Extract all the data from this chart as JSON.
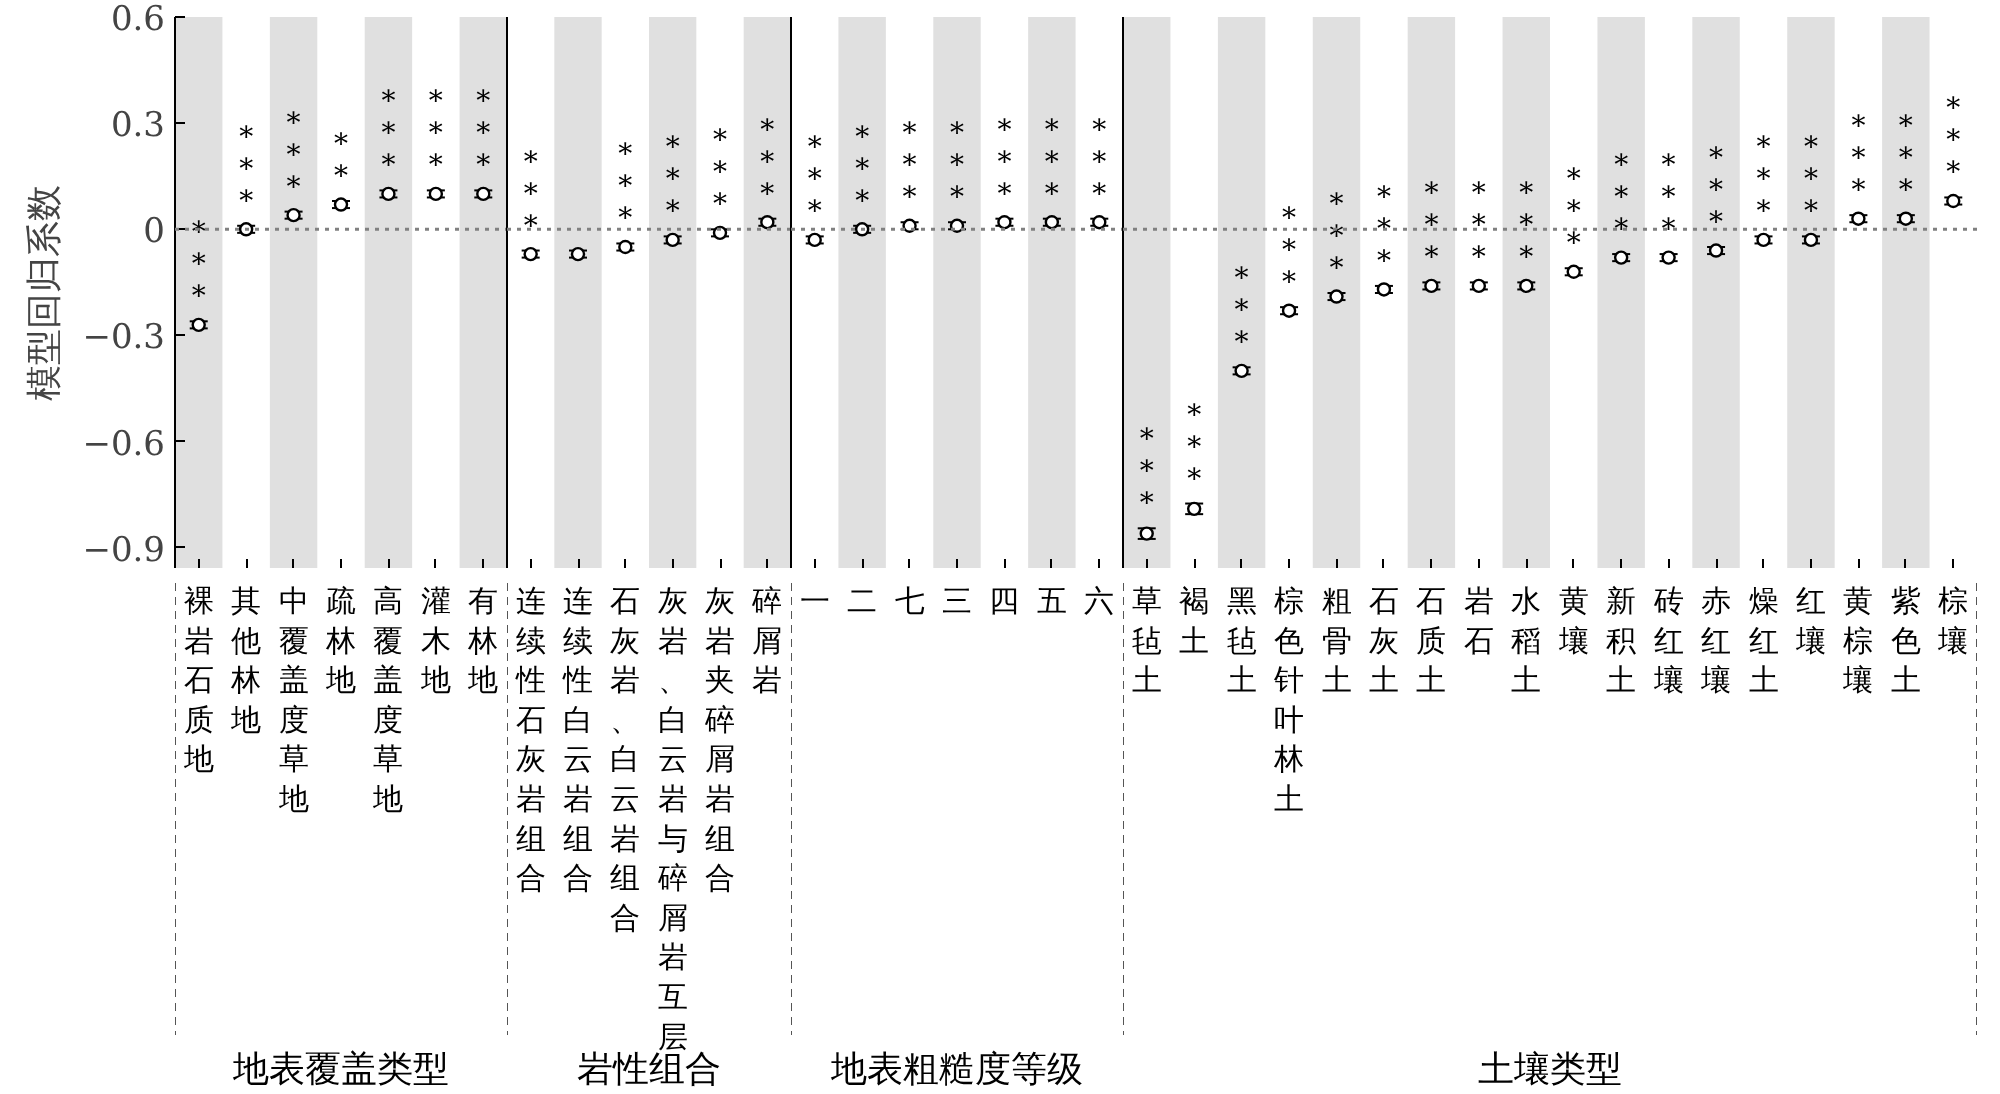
{
  "chart_data": [
    {
      "type": "scatter",
      "xlabel": "地表覆盖类型",
      "ylabel": "模型回归系数",
      "categories": [
        "裸岩石质地",
        "其他林地",
        "中覆盖度草地",
        "疏林地",
        "高覆盖度草地",
        "灌木地",
        "有林地"
      ],
      "series": [
        {
          "color": "#000000",
          "values": [
            -0.27,
            0.0,
            0.04,
            0.07,
            0.1,
            0.1,
            0.1
          ],
          "errors": [
            0.01,
            0.01,
            0.01,
            0.01,
            0.01,
            0.01,
            0.01
          ],
          "value_labels": [
            "***",
            "***",
            "***",
            "**",
            "***",
            "***",
            "***"
          ]
        }
      ],
      "marker": "circle",
      "grid": false,
      "ylim": [
        -0.96,
        0.6
      ],
      "yticks": [
        {
          "value": -0.9,
          "label": "−0.9"
        },
        {
          "value": -0.6,
          "label": "−0.6"
        },
        {
          "value": -0.3,
          "label": "−0.3"
        },
        0,
        0.3,
        0.6
      ],
      "ref_lines": [
        {
          "axis": "y",
          "value": 0,
          "color": "#808080",
          "line_style": "dotted"
        }
      ],
      "bands": [
        {
          "axis": "x",
          "from": "裸岩石质地",
          "to": "裸岩石质地",
          "color": "#e0e0e0"
        },
        {
          "axis": "x",
          "from": "中覆盖度草地",
          "to": "中覆盖度草地",
          "color": "#e0e0e0"
        },
        {
          "axis": "x",
          "from": "高覆盖度草地",
          "to": "高覆盖度草地",
          "color": "#e0e0e0"
        },
        {
          "axis": "x",
          "from": "有林地",
          "to": "有林地",
          "color": "#e0e0e0"
        }
      ]
    },
    {
      "type": "scatter",
      "xlabel": "岩性组合",
      "tick_labels": "x",
      "categories": [
        "连续性石灰岩组合",
        "连续性白云岩组合",
        "石灰岩、白云岩组合",
        "灰岩、白云岩与碎屑岩互层",
        "灰岩夹碎屑岩组合",
        "碎屑岩"
      ],
      "series": [
        {
          "color": "#000000",
          "values": [
            -0.07,
            -0.07,
            -0.05,
            -0.03,
            -0.01,
            0.02
          ],
          "errors": [
            0.01,
            0.01,
            0.01,
            0.01,
            0.01,
            0.01
          ],
          "value_labels": [
            "***",
            null,
            "***",
            "***",
            "***",
            "***"
          ]
        }
      ],
      "marker": "circle",
      "grid": false,
      "ylim": [
        -0.96,
        0.6
      ],
      "ref_lines": [
        {
          "axis": "y",
          "value": 0,
          "color": "#808080",
          "line_style": "dotted"
        }
      ],
      "bands": [
        {
          "axis": "x",
          "from": "连续性白云岩组合",
          "to": "连续性白云岩组合",
          "color": "#e0e0e0"
        },
        {
          "axis": "x",
          "from": "灰岩、白云岩与碎屑岩互层",
          "to": "灰岩、白云岩与碎屑岩互层",
          "color": "#e0e0e0"
        },
        {
          "axis": "x",
          "from": "碎屑岩",
          "to": "碎屑岩",
          "color": "#e0e0e0"
        }
      ]
    },
    {
      "type": "scatter",
      "xlabel": "地表粗糙度等级",
      "tick_labels": "x",
      "categories": [
        "一",
        "二",
        "七",
        "三",
        "四",
        "五",
        "六"
      ],
      "series": [
        {
          "color": "#000000",
          "values": [
            -0.03,
            0.0,
            0.01,
            0.01,
            0.02,
            0.02,
            0.02
          ],
          "errors": [
            0.01,
            0.01,
            0.01,
            0.01,
            0.01,
            0.01,
            0.01
          ],
          "value_labels": [
            "***",
            "***",
            "***",
            "***",
            "***",
            "***",
            "***"
          ]
        }
      ],
      "marker": "circle",
      "grid": false,
      "ylim": [
        -0.96,
        0.6
      ],
      "ref_lines": [
        {
          "axis": "y",
          "value": 0,
          "color": "#808080",
          "line_style": "dotted"
        }
      ],
      "bands": [
        {
          "axis": "x",
          "from": "二",
          "to": "二",
          "color": "#e0e0e0"
        },
        {
          "axis": "x",
          "from": "三",
          "to": "三",
          "color": "#e0e0e0"
        },
        {
          "axis": "x",
          "from": "五",
          "to": "五",
          "color": "#e0e0e0"
        }
      ]
    },
    {
      "type": "scatter",
      "xlabel": "土壤类型",
      "tick_labels": "x",
      "categories": [
        "草毡土",
        "褐土",
        "黑毡土",
        "棕色针叶林土",
        "粗骨土",
        "石灰土",
        "石质土",
        "岩石",
        "水稻土",
        "黄壤",
        "新积土",
        "砖红壤",
        "赤红壤",
        "燥红土",
        "红壤",
        "黄棕壤",
        "紫色土",
        "棕壤"
      ],
      "series": [
        {
          "color": "#000000",
          "values": [
            -0.86,
            -0.79,
            -0.4,
            -0.23,
            -0.19,
            -0.17,
            -0.16,
            -0.16,
            -0.16,
            -0.12,
            -0.08,
            -0.08,
            -0.06,
            -0.03,
            -0.03,
            0.03,
            0.03,
            0.08
          ],
          "errors": [
            0.015,
            0.015,
            0.01,
            0.01,
            0.01,
            0.01,
            0.01,
            0.01,
            0.01,
            0.01,
            0.01,
            0.01,
            0.01,
            0.01,
            0.01,
            0.01,
            0.01,
            0.01
          ],
          "value_labels": [
            "***",
            "***",
            "***",
            "***",
            "***",
            "***",
            "***",
            "***",
            "***",
            "***",
            "***",
            "***",
            "***",
            "***",
            "***",
            "***",
            "***",
            "***"
          ]
        }
      ],
      "marker": "circle",
      "grid": false,
      "ylim": [
        -0.96,
        0.6
      ],
      "ref_lines": [
        {
          "axis": "y",
          "value": 0,
          "color": "#808080",
          "line_style": "dotted"
        }
      ],
      "bands": [
        {
          "axis": "x",
          "from": "草毡土",
          "to": "草毡土",
          "color": "#e0e0e0"
        },
        {
          "axis": "x",
          "from": "黑毡土",
          "to": "黑毡土",
          "color": "#e0e0e0"
        },
        {
          "axis": "x",
          "from": "粗骨土",
          "to": "粗骨土",
          "color": "#e0e0e0"
        },
        {
          "axis": "x",
          "from": "石质土",
          "to": "石质土",
          "color": "#e0e0e0"
        },
        {
          "axis": "x",
          "from": "水稻土",
          "to": "水稻土",
          "color": "#e0e0e0"
        },
        {
          "axis": "x",
          "from": "新积土",
          "to": "新积土",
          "color": "#e0e0e0"
        },
        {
          "axis": "x",
          "from": "赤红壤",
          "to": "赤红壤",
          "color": "#e0e0e0"
        },
        {
          "axis": "x",
          "from": "红壤",
          "to": "红壤",
          "color": "#e0e0e0"
        },
        {
          "axis": "x",
          "from": "紫色土",
          "to": "紫色土",
          "color": "#e0e0e0"
        }
      ]
    }
  ]
}
